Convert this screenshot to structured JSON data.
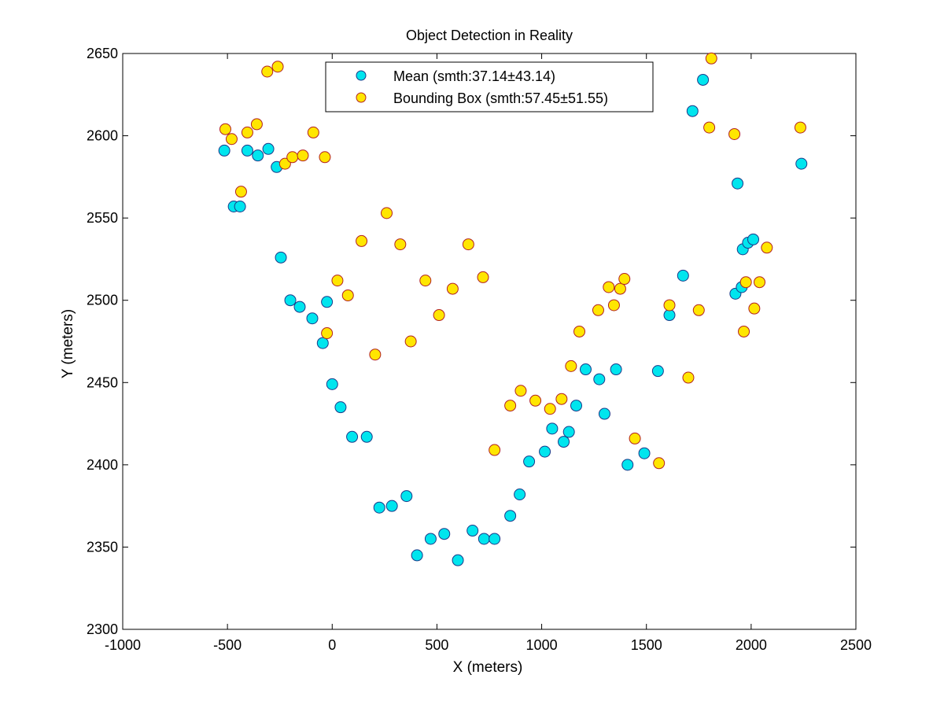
{
  "chart_data": {
    "type": "scatter",
    "title": "Object Detection in Reality",
    "xlabel": "X (meters)",
    "ylabel": "Y (meters)",
    "xlim": [
      -1000,
      2500
    ],
    "ylim": [
      2300,
      2650
    ],
    "xticks": [
      -1000,
      -500,
      0,
      500,
      1000,
      1500,
      2000,
      2500
    ],
    "yticks": [
      2300,
      2350,
      2400,
      2450,
      2500,
      2550,
      2600,
      2650
    ],
    "grid": false,
    "legend_position": "top-center",
    "series": [
      {
        "name": "Mean (smth:37.14±43.14)",
        "color": "#00e5ee",
        "edge": "#1a3a8a",
        "points": [
          [
            -515,
            2591
          ],
          [
            -470,
            2557
          ],
          [
            -440,
            2557
          ],
          [
            -405,
            2591
          ],
          [
            -355,
            2588
          ],
          [
            -305,
            2592
          ],
          [
            -265,
            2581
          ],
          [
            -245,
            2526
          ],
          [
            -200,
            2500
          ],
          [
            -155,
            2496
          ],
          [
            -95,
            2489
          ],
          [
            -45,
            2474
          ],
          [
            -25,
            2499
          ],
          [
            0,
            2449
          ],
          [
            40,
            2435
          ],
          [
            95,
            2417
          ],
          [
            165,
            2417
          ],
          [
            225,
            2374
          ],
          [
            285,
            2375
          ],
          [
            355,
            2381
          ],
          [
            405,
            2345
          ],
          [
            470,
            2355
          ],
          [
            535,
            2358
          ],
          [
            600,
            2342
          ],
          [
            670,
            2360
          ],
          [
            725,
            2355
          ],
          [
            775,
            2355
          ],
          [
            850,
            2369
          ],
          [
            895,
            2382
          ],
          [
            940,
            2402
          ],
          [
            1015,
            2408
          ],
          [
            1050,
            2422
          ],
          [
            1105,
            2414
          ],
          [
            1130,
            2420
          ],
          [
            1165,
            2436
          ],
          [
            1210,
            2458
          ],
          [
            1275,
            2452
          ],
          [
            1300,
            2431
          ],
          [
            1355,
            2458
          ],
          [
            1410,
            2400
          ],
          [
            1490,
            2407
          ],
          [
            1555,
            2457
          ],
          [
            1610,
            2491
          ],
          [
            1675,
            2515
          ],
          [
            1720,
            2615
          ],
          [
            1770,
            2634
          ],
          [
            1925,
            2504
          ],
          [
            1935,
            2571
          ],
          [
            1955,
            2508
          ],
          [
            1960,
            2531
          ],
          [
            1985,
            2535
          ],
          [
            2010,
            2537
          ],
          [
            2240,
            2583
          ]
        ]
      },
      {
        "name": "Bounding Box (smth:57.45±51.55)",
        "color": "#ffe600",
        "edge": "#b22222",
        "points": [
          [
            -510,
            2604
          ],
          [
            -480,
            2598
          ],
          [
            -435,
            2566
          ],
          [
            -405,
            2602
          ],
          [
            -360,
            2607
          ],
          [
            -310,
            2639
          ],
          [
            -260,
            2642
          ],
          [
            -225,
            2583
          ],
          [
            -190,
            2587
          ],
          [
            -140,
            2588
          ],
          [
            -90,
            2602
          ],
          [
            -35,
            2587
          ],
          [
            -25,
            2480
          ],
          [
            25,
            2512
          ],
          [
            75,
            2503
          ],
          [
            140,
            2536
          ],
          [
            205,
            2467
          ],
          [
            260,
            2553
          ],
          [
            325,
            2534
          ],
          [
            375,
            2475
          ],
          [
            445,
            2512
          ],
          [
            510,
            2491
          ],
          [
            575,
            2507
          ],
          [
            650,
            2534
          ],
          [
            720,
            2514
          ],
          [
            775,
            2409
          ],
          [
            850,
            2436
          ],
          [
            900,
            2445
          ],
          [
            970,
            2439
          ],
          [
            1040,
            2434
          ],
          [
            1095,
            2440
          ],
          [
            1140,
            2460
          ],
          [
            1180,
            2481
          ],
          [
            1270,
            2494
          ],
          [
            1320,
            2508
          ],
          [
            1345,
            2497
          ],
          [
            1375,
            2507
          ],
          [
            1395,
            2513
          ],
          [
            1445,
            2416
          ],
          [
            1560,
            2401
          ],
          [
            1610,
            2497
          ],
          [
            1700,
            2453
          ],
          [
            1750,
            2494
          ],
          [
            1800,
            2605
          ],
          [
            1810,
            2647
          ],
          [
            1920,
            2601
          ],
          [
            1965,
            2481
          ],
          [
            1975,
            2511
          ],
          [
            2015,
            2495
          ],
          [
            2040,
            2511
          ],
          [
            2075,
            2532
          ],
          [
            2235,
            2605
          ]
        ]
      }
    ]
  }
}
